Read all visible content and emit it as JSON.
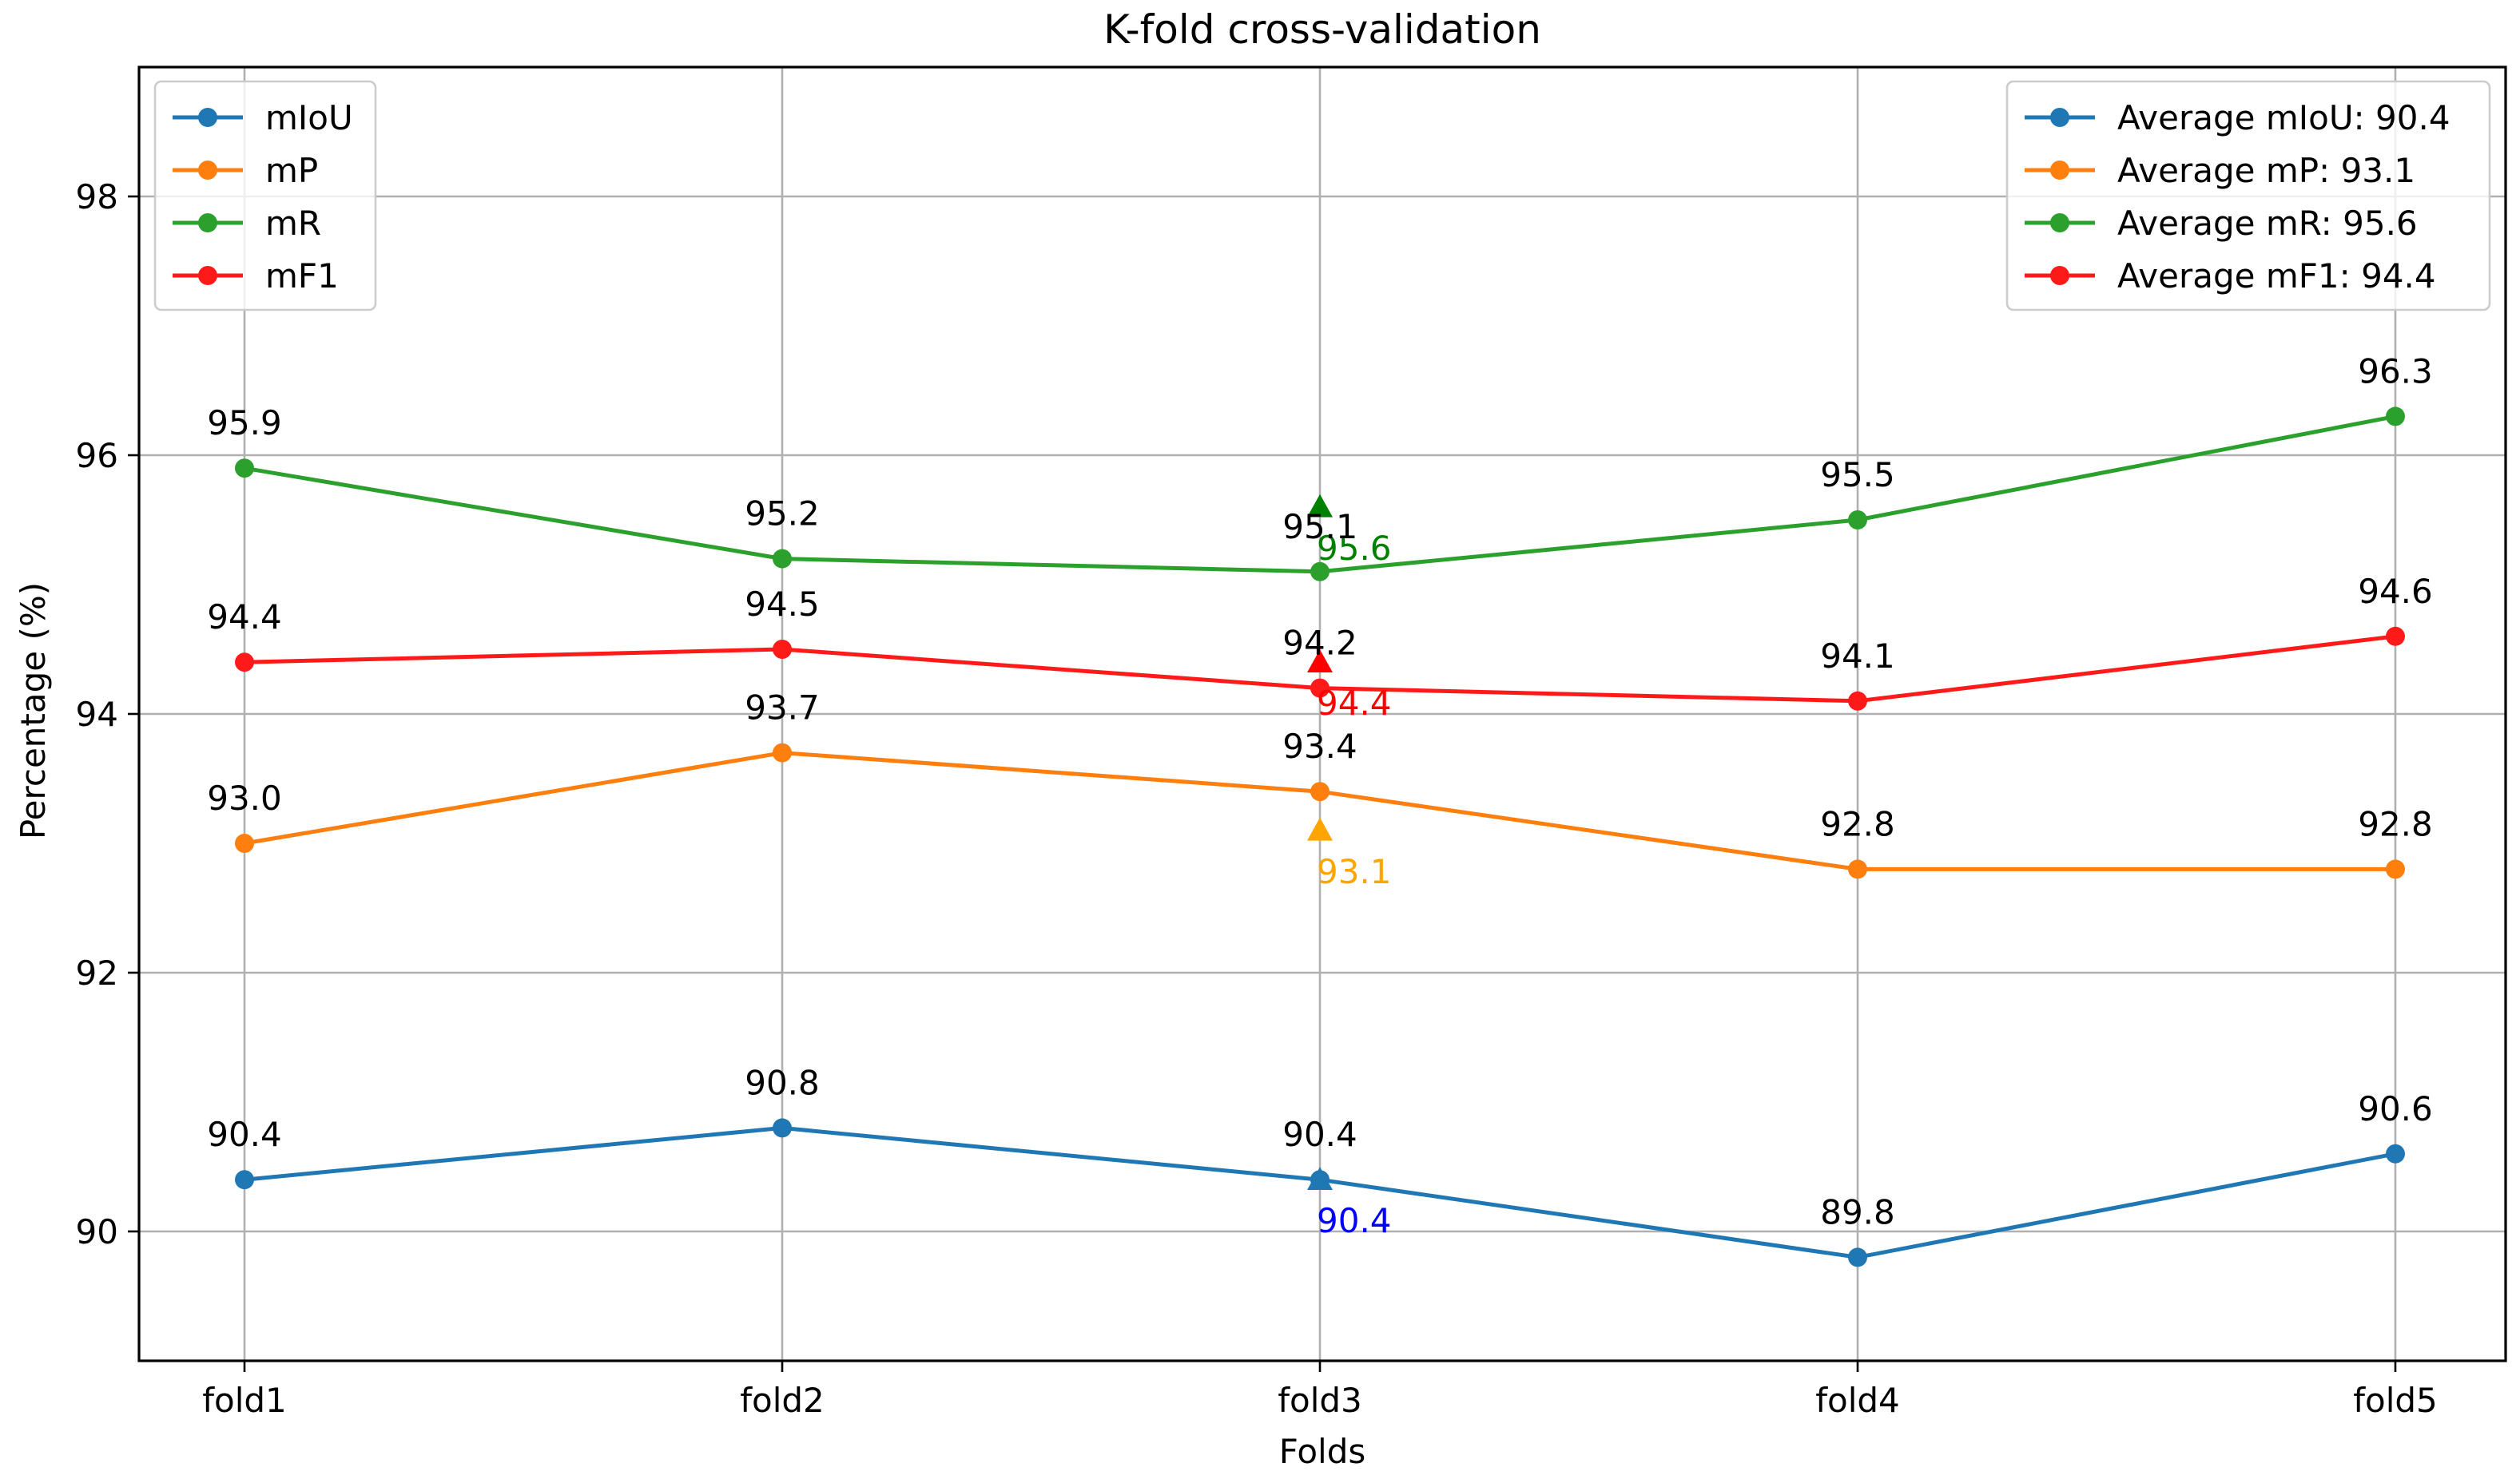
{
  "chart_data": {
    "type": "line",
    "title": "K-fold cross-validation",
    "xlabel": "Folds",
    "ylabel": "Percentage (%)",
    "categories": [
      "fold1",
      "fold2",
      "fold3",
      "fold4",
      "fold5"
    ],
    "ylim": [
      89,
      99
    ],
    "yticks": [
      90,
      92,
      94,
      96,
      98
    ],
    "grid": true,
    "series": [
      {
        "name": "mIoU",
        "color": "#1f77b4",
        "values": [
          90.4,
          90.8,
          90.4,
          89.8,
          90.6
        ],
        "labels": [
          "90.4",
          "90.8",
          "90.4",
          "89.8",
          "90.6"
        ]
      },
      {
        "name": "mP",
        "color": "#ff7f0e",
        "values": [
          93.0,
          93.7,
          93.4,
          92.8,
          92.8
        ],
        "labels": [
          "93.0",
          "93.7",
          "93.4",
          "92.8",
          "92.8"
        ]
      },
      {
        "name": "mR",
        "color": "#2ca02c",
        "values": [
          95.9,
          95.2,
          95.1,
          95.5,
          96.3
        ],
        "labels": [
          "95.9",
          "95.2",
          "95.1",
          "95.5",
          "96.3"
        ]
      },
      {
        "name": "mF1",
        "color": "#ff1a1a",
        "values": [
          94.4,
          94.5,
          94.2,
          94.1,
          94.6
        ],
        "labels": [
          "94.4",
          "94.5",
          "94.2",
          "94.1",
          "94.6"
        ]
      }
    ],
    "averages": [
      {
        "name": "mIoU",
        "value": 90.4,
        "label": "90.4",
        "legend": "Average mIoU: 90.4",
        "color": "#1f77b4",
        "marker_color": "#1f77b4",
        "text_color": "#0000ff",
        "at_category": "fold3"
      },
      {
        "name": "mP",
        "value": 93.1,
        "label": "93.1",
        "legend": "Average mP: 93.1",
        "color": "#ff7f0e",
        "marker_color": "#ffa500",
        "text_color": "#ffa500",
        "at_category": "fold3"
      },
      {
        "name": "mR",
        "value": 95.6,
        "label": "95.6",
        "legend": "Average mR: 95.6",
        "color": "#2ca02c",
        "marker_color": "#008000",
        "text_color": "#008000",
        "at_category": "fold3"
      },
      {
        "name": "mF1",
        "value": 94.4,
        "label": "94.4",
        "legend": "Average mF1: 94.4",
        "color": "#ff1a1a",
        "marker_color": "#ff0000",
        "text_color": "#ff0000",
        "at_category": "fold3"
      }
    ],
    "legends": [
      {
        "placement": "top-left",
        "entries": [
          "mIoU",
          "mP",
          "mR",
          "mF1"
        ]
      },
      {
        "placement": "top-right",
        "entries": [
          "Average mIoU: 90.4",
          "Average mP: 93.1",
          "Average mR: 95.6",
          "Average mF1: 94.4"
        ]
      }
    ]
  }
}
